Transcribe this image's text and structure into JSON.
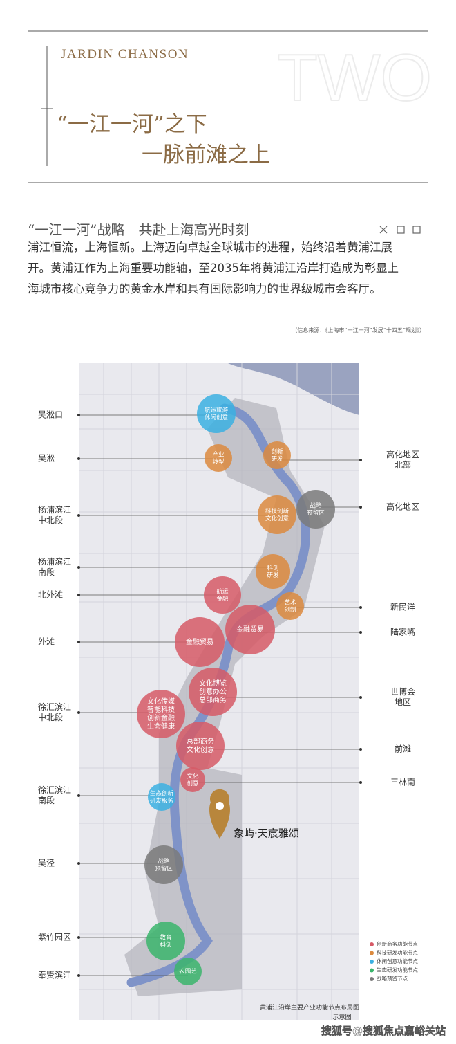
{
  "header": {
    "brand": "JARDIN CHANSON",
    "watermark": "TWO",
    "title_lines": [
      "“一江一河”之下",
      "一脉前滩之上"
    ]
  },
  "section": {
    "heading": "“一江一河”战略　共赴上海高光时刻",
    "paragraph_lines": [
      "浦江恒流，上海恒新。上海迈向卓越全球城市的进程，始终沿着黄浦江展",
      "开。黄浦江作为上海重要功能轴，至2035年将黄浦江沿岸打造成为彰显上",
      "海城市核心竞争力的黄金水岸和具有国际影响力的世界级城市会客厅。"
    ],
    "source": "（信息来源：《上海市“一江一河”发展“十四五”规划》）"
  },
  "map": {
    "nodes": [
      {
        "lines": [
          "航运旅游",
          "休闲创意"
        ],
        "color": "#3bb0e2"
      },
      {
        "lines": [
          "产业",
          "转型"
        ],
        "color": "#dc8a3e"
      },
      {
        "lines": [
          "创新",
          "研发"
        ],
        "color": "#dc8a3e"
      },
      {
        "lines": [
          "战略",
          "预留区"
        ],
        "color": "#7a7a7a"
      },
      {
        "lines": [
          "科技创新",
          "文化创意"
        ],
        "color": "#dc8a3e"
      },
      {
        "lines": [
          "科创",
          "研发"
        ],
        "color": "#dc8a3e"
      },
      {
        "lines": [
          "航运",
          "金融"
        ],
        "color": "#d65a66"
      },
      {
        "lines": [
          "艺术",
          "创制"
        ],
        "color": "#dc8a3e"
      },
      {
        "lines": [
          "金融贸易"
        ],
        "color": "#d65a66"
      },
      {
        "lines": [
          "金融贸易"
        ],
        "color": "#d65a66"
      },
      {
        "lines": [
          "文化博览",
          "创意办公",
          "总部商务"
        ],
        "color": "#d65a66"
      },
      {
        "lines": [
          "文化传媒",
          "智能科技",
          "创新金融",
          "生命健康"
        ],
        "color": "#d65a66"
      },
      {
        "lines": [
          "总部商务",
          "文化创意"
        ],
        "color": "#d65a66"
      },
      {
        "lines": [
          "文化",
          "创意"
        ],
        "color": "#d65a66"
      },
      {
        "lines": [
          "生态创新",
          "研发服务"
        ],
        "color": "#3bb0e2"
      },
      {
        "lines": [
          "战略",
          "预留区"
        ],
        "color": "#7a7a7a"
      },
      {
        "lines": [
          "教育",
          "科创"
        ],
        "color": "#3bb56c"
      },
      {
        "lines": [
          "农园艺"
        ],
        "color": "#3bb56c"
      }
    ],
    "left_labels": [
      {
        "lines": [
          "吴淞口"
        ]
      },
      {
        "lines": [
          "吴淞"
        ]
      },
      {
        "lines": [
          "杨浦滨江",
          "中北段"
        ]
      },
      {
        "lines": [
          "杨浦滨江",
          "南段"
        ]
      },
      {
        "lines": [
          "北外滩"
        ]
      },
      {
        "lines": [
          "外滩"
        ]
      },
      {
        "lines": [
          "徐汇滨江",
          "中北段"
        ]
      },
      {
        "lines": [
          "徐汇滨江",
          "南段"
        ]
      },
      {
        "lines": [
          "吴泾"
        ]
      },
      {
        "lines": [
          "紫竹园区"
        ]
      },
      {
        "lines": [
          "奉贤滨江"
        ]
      }
    ],
    "right_labels": [
      {
        "lines": [
          "高化地区",
          "北部"
        ]
      },
      {
        "lines": [
          "高化地区"
        ]
      },
      {
        "lines": [
          "新民洋"
        ]
      },
      {
        "lines": [
          "陆家嘴"
        ]
      },
      {
        "lines": [
          "世博会",
          "地区"
        ]
      },
      {
        "lines": [
          "前滩"
        ]
      },
      {
        "lines": [
          "三林南"
        ]
      }
    ],
    "pin_label": "象屿·天宸雅颂",
    "legend": [
      {
        "label": "创新商务功能节点",
        "color": "#d65a66"
      },
      {
        "label": "科技研发功能节点",
        "color": "#dc8a3e"
      },
      {
        "label": "休闲创意功能节点",
        "color": "#3bb0e2"
      },
      {
        "label": "生态研发功能节点",
        "color": "#3bb56c"
      },
      {
        "label": "战略预留节点",
        "color": "#7a7a7a"
      }
    ],
    "caption_lines": [
      "黄浦江沿岸主要产业功能节点布局图",
      "示意图"
    ]
  },
  "footer": {
    "watermark": "搜狐号@搜狐焦点嘉峪关站"
  }
}
